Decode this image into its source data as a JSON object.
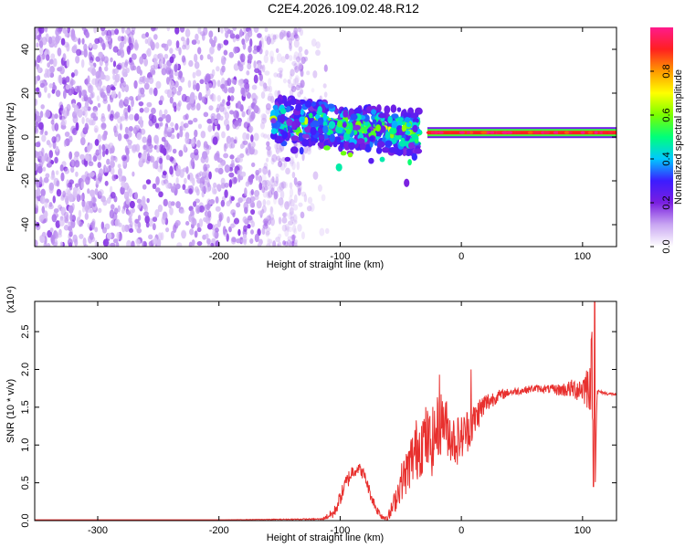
{
  "title": "C2E4.2026.109.02.48.R12",
  "colors": {
    "line": "#e8302e",
    "axis": "#000000",
    "background": "#ffffff"
  },
  "chart_data": [
    {
      "type": "heatmap",
      "xlabel": "Height of straight line (km)",
      "ylabel": "Frequency (Hz)",
      "xlim": [
        -352,
        128
      ],
      "ylim": [
        -50,
        50
      ],
      "xticks": [
        -300,
        -200,
        -100,
        0,
        100
      ],
      "xtick_labels": [
        "-300",
        "-200",
        "-100",
        "0",
        "100"
      ],
      "yticks": [
        -40,
        -20,
        0,
        20,
        40
      ],
      "ytick_labels": [
        "-40",
        "-20",
        "0",
        "20",
        "40"
      ],
      "colorbar": {
        "label": "Normalized spectral amplitude",
        "range": [
          0,
          1
        ],
        "ticks": [
          0.0,
          0.2,
          0.4,
          0.6,
          0.8
        ],
        "tick_labels": [
          "0.0",
          "0.2",
          "0.4",
          "0.6",
          "0.8"
        ],
        "stops": [
          "#ffffff",
          "#c9a6f2",
          "#7a1fe0",
          "#3c1cff",
          "#00c8ff",
          "#00ff7a",
          "#7aff00",
          "#ffff00",
          "#ff9a00",
          "#ff2020",
          "#ff1a8c"
        ]
      },
      "regions": [
        {
          "name": "noise",
          "x_range": [
            -352,
            -130
          ],
          "freq_range": [
            -50,
            50
          ],
          "amplitude": 0.1
        },
        {
          "name": "transition",
          "x_range": [
            -155,
            -35
          ],
          "freq_range": [
            -30,
            18
          ],
          "amplitude": 0.5
        },
        {
          "name": "tone",
          "x_range": [
            -28,
            128
          ],
          "freq": 2,
          "amplitude": 0.9
        }
      ]
    },
    {
      "type": "line",
      "xlabel": "Height of straight line (km)",
      "ylabel": "SNR (10 * v/v)",
      "y_multiplier_label": "(x10⁴)",
      "xlim": [
        -352,
        128
      ],
      "ylim": [
        0,
        2.9
      ],
      "xticks": [
        -300,
        -200,
        -100,
        0,
        100
      ],
      "xtick_labels": [
        "-300",
        "-200",
        "-100",
        "0",
        "100"
      ],
      "yticks": [
        0.0,
        0.5,
        1.0,
        1.5,
        2.0,
        2.5
      ],
      "ytick_labels": [
        "0.0",
        "0.5",
        "1.0",
        "1.5",
        "2.0",
        "2.5"
      ],
      "series": [
        {
          "name": "SNR",
          "x": [
            -352,
            -200,
            -115,
            -105,
            -100,
            -95,
            -90,
            -85,
            -80,
            -75,
            -70,
            -65,
            -60,
            -55,
            -50,
            -45,
            -40,
            -35,
            -30,
            -25,
            -20,
            -15,
            -10,
            -5,
            0,
            5,
            10,
            15,
            20,
            30,
            40,
            50,
            60,
            70,
            80,
            90,
            100,
            105,
            108,
            110,
            112,
            115,
            120,
            128
          ],
          "y": [
            0.01,
            0.01,
            0.02,
            0.1,
            0.3,
            0.5,
            0.65,
            0.7,
            0.6,
            0.35,
            0.15,
            0.05,
            0.05,
            0.25,
            0.5,
            0.65,
            0.85,
            1.0,
            1.1,
            1.0,
            1.2,
            1.35,
            1.15,
            1.05,
            1.1,
            1.2,
            1.3,
            1.45,
            1.55,
            1.65,
            1.7,
            1.72,
            1.75,
            1.74,
            1.73,
            1.74,
            1.75,
            1.8,
            2.0,
            0.6,
            1.7,
            1.7,
            1.68,
            1.67
          ],
          "noise": [
            0,
            0,
            0.01,
            0.08,
            0.1,
            0.12,
            0.1,
            0.08,
            0.08,
            0.08,
            0.06,
            0.05,
            0.08,
            0.15,
            0.25,
            0.3,
            0.4,
            0.45,
            0.45,
            0.45,
            0.45,
            0.4,
            0.35,
            0.35,
            0.3,
            0.3,
            0.25,
            0.2,
            0.15,
            0.08,
            0.05,
            0.05,
            0.05,
            0.05,
            0.08,
            0.12,
            0.2,
            0.35,
            0.6,
            0.5,
            0.05,
            0.02,
            0.02,
            0.02
          ],
          "peaks": [
            {
              "x": -18,
              "y": 1.93
            },
            {
              "x": 8,
              "y": 2.0
            },
            {
              "x": 110,
              "y": 2.9
            },
            {
              "x": 109,
              "y": 0.45
            }
          ]
        }
      ]
    }
  ]
}
